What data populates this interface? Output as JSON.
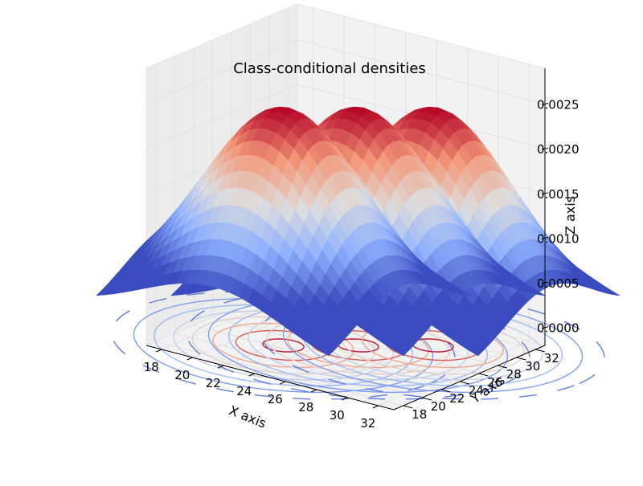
{
  "chart_data": {
    "type": "surface3d",
    "title": "Class-conditional densities",
    "xlabel": "X axis",
    "ylabel": "Y axis",
    "zlabel": "Z axis",
    "x_ticks": [
      "18",
      "20",
      "22",
      "24",
      "26",
      "28",
      "30",
      "32"
    ],
    "y_ticks": [
      "18",
      "20",
      "22",
      "24",
      "26",
      "28",
      "30",
      "32"
    ],
    "z_ticks": [
      "0.0000",
      "0.0005",
      "0.0010",
      "0.0015",
      "0.0020",
      "0.0025"
    ],
    "xlim": [
      17,
      33
    ],
    "ylim": [
      17,
      33
    ],
    "zlim": [
      -0.0002,
      0.0029
    ],
    "colormap": "coolwarm",
    "colormap_stops": [
      "#3b4cc0",
      "#8db0fe",
      "#dddddd",
      "#f49a7b",
      "#b40426"
    ],
    "grid": true,
    "pane_color": "#f2f2f2",
    "series": [
      {
        "center": [
          22.5,
          22.5
        ],
        "peak": 0.00265
      },
      {
        "center": [
          25.5,
          25.5
        ],
        "peak": 0.00265
      },
      {
        "center": [
          28.5,
          28.5
        ],
        "peak": 0.00265
      }
    ]
  }
}
